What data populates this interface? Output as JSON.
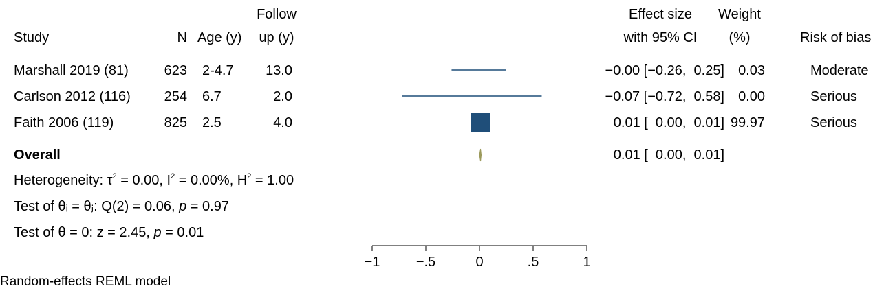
{
  "headers": {
    "study": "Study",
    "n": "N",
    "age": "Age (y)",
    "follow_top": "Follow",
    "follow_bottom": "up (y)",
    "effect_top": "Effect size",
    "effect_bottom": "with 95% CI",
    "weight_top": "Weight",
    "weight_bottom": "(%)",
    "bias": "Risk of bias"
  },
  "rows": [
    {
      "study": "Marshall 2019 (81)",
      "n": "623",
      "age": "2-4.7",
      "follow": "13.0",
      "ci_text": "−0.00 [−0.26,  0.25]",
      "weight": "0.03",
      "bias": "Moderate"
    },
    {
      "study": "Carlson 2012 (116)",
      "n": "254",
      "age": "6.7",
      "follow": "2.0",
      "ci_text": "−0.07 [−0.72,  0.58]",
      "weight": "0.00",
      "bias": "Serious"
    },
    {
      "study": "Faith 2006 (119)",
      "n": "825",
      "age": "2.5",
      "follow": "4.0",
      "ci_text": "0.01 [  0.00,  0.01]",
      "weight": "99.97",
      "bias": "Serious"
    }
  ],
  "overall": {
    "label": "Overall",
    "ci_text": "0.01 [  0.00,  0.01]"
  },
  "stats": {
    "het_prefix": "Heterogeneity: τ",
    "het_sup1": "2",
    "het_mid1": " = 0.00, I",
    "het_sup2": "2",
    "het_mid2": " = 0.00%, H",
    "het_sup3": "2",
    "het_end": " = 1.00",
    "test1_prefix": "Test of θᵢ = θⱼ: Q(2) = 0.06, ",
    "test1_p": "p",
    "test1_end": " = 0.97",
    "test2_prefix": "Test of θ = 0: z = 2.45, ",
    "test2_p": "p",
    "test2_end": " = 0.01"
  },
  "footer": "Random-effects REML model",
  "chart_data": {
    "type": "forest",
    "xlim": [
      -1,
      1
    ],
    "ticks": [
      -1,
      -0.5,
      0,
      0.5,
      1
    ],
    "tick_labels": [
      "−1",
      "−.5",
      "0",
      ".5",
      "1"
    ],
    "studies": [
      {
        "name": "Marshall 2019 (81)",
        "estimate": -0.0,
        "lower": -0.26,
        "upper": 0.25,
        "weight": 0.03
      },
      {
        "name": "Carlson 2012 (116)",
        "estimate": -0.07,
        "lower": -0.72,
        "upper": 0.58,
        "weight": 0.0
      },
      {
        "name": "Faith 2006 (119)",
        "estimate": 0.01,
        "lower": 0.0,
        "upper": 0.01,
        "weight": 99.97
      }
    ],
    "overall": {
      "estimate": 0.01,
      "lower": 0.0,
      "upper": 0.01
    },
    "colors": {
      "study": "#1f4e79",
      "overall": "#9c9a5c",
      "axis": "#000000"
    }
  }
}
